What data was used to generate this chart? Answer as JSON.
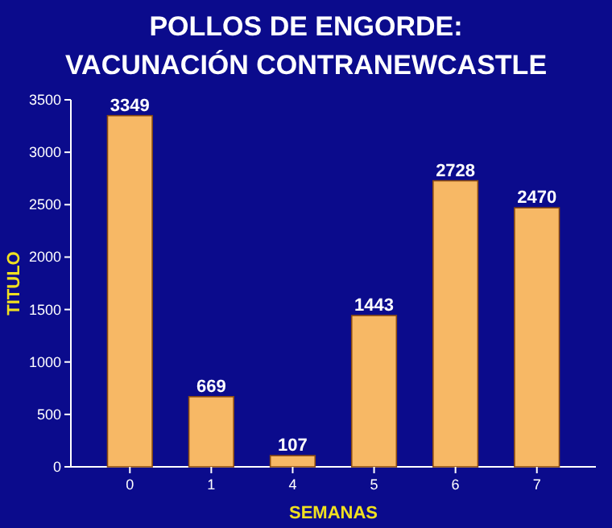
{
  "chart_data": {
    "type": "bar",
    "title": "POLLOS DE ENGORDE:\nVACUNACIÓN CONTRANEWCASTLE",
    "xlabel": "SEMANAS",
    "ylabel": "TITULO",
    "categories": [
      "0",
      "1",
      "4",
      "5",
      "6",
      "7"
    ],
    "values": [
      3349,
      669,
      107,
      1443,
      2728,
      2470
    ],
    "color": "#f7b865",
    "ylim": [
      0,
      3500
    ],
    "yticks": [
      0,
      500,
      1000,
      1500,
      2000,
      2500,
      3000,
      3500
    ],
    "data_labels": true
  }
}
